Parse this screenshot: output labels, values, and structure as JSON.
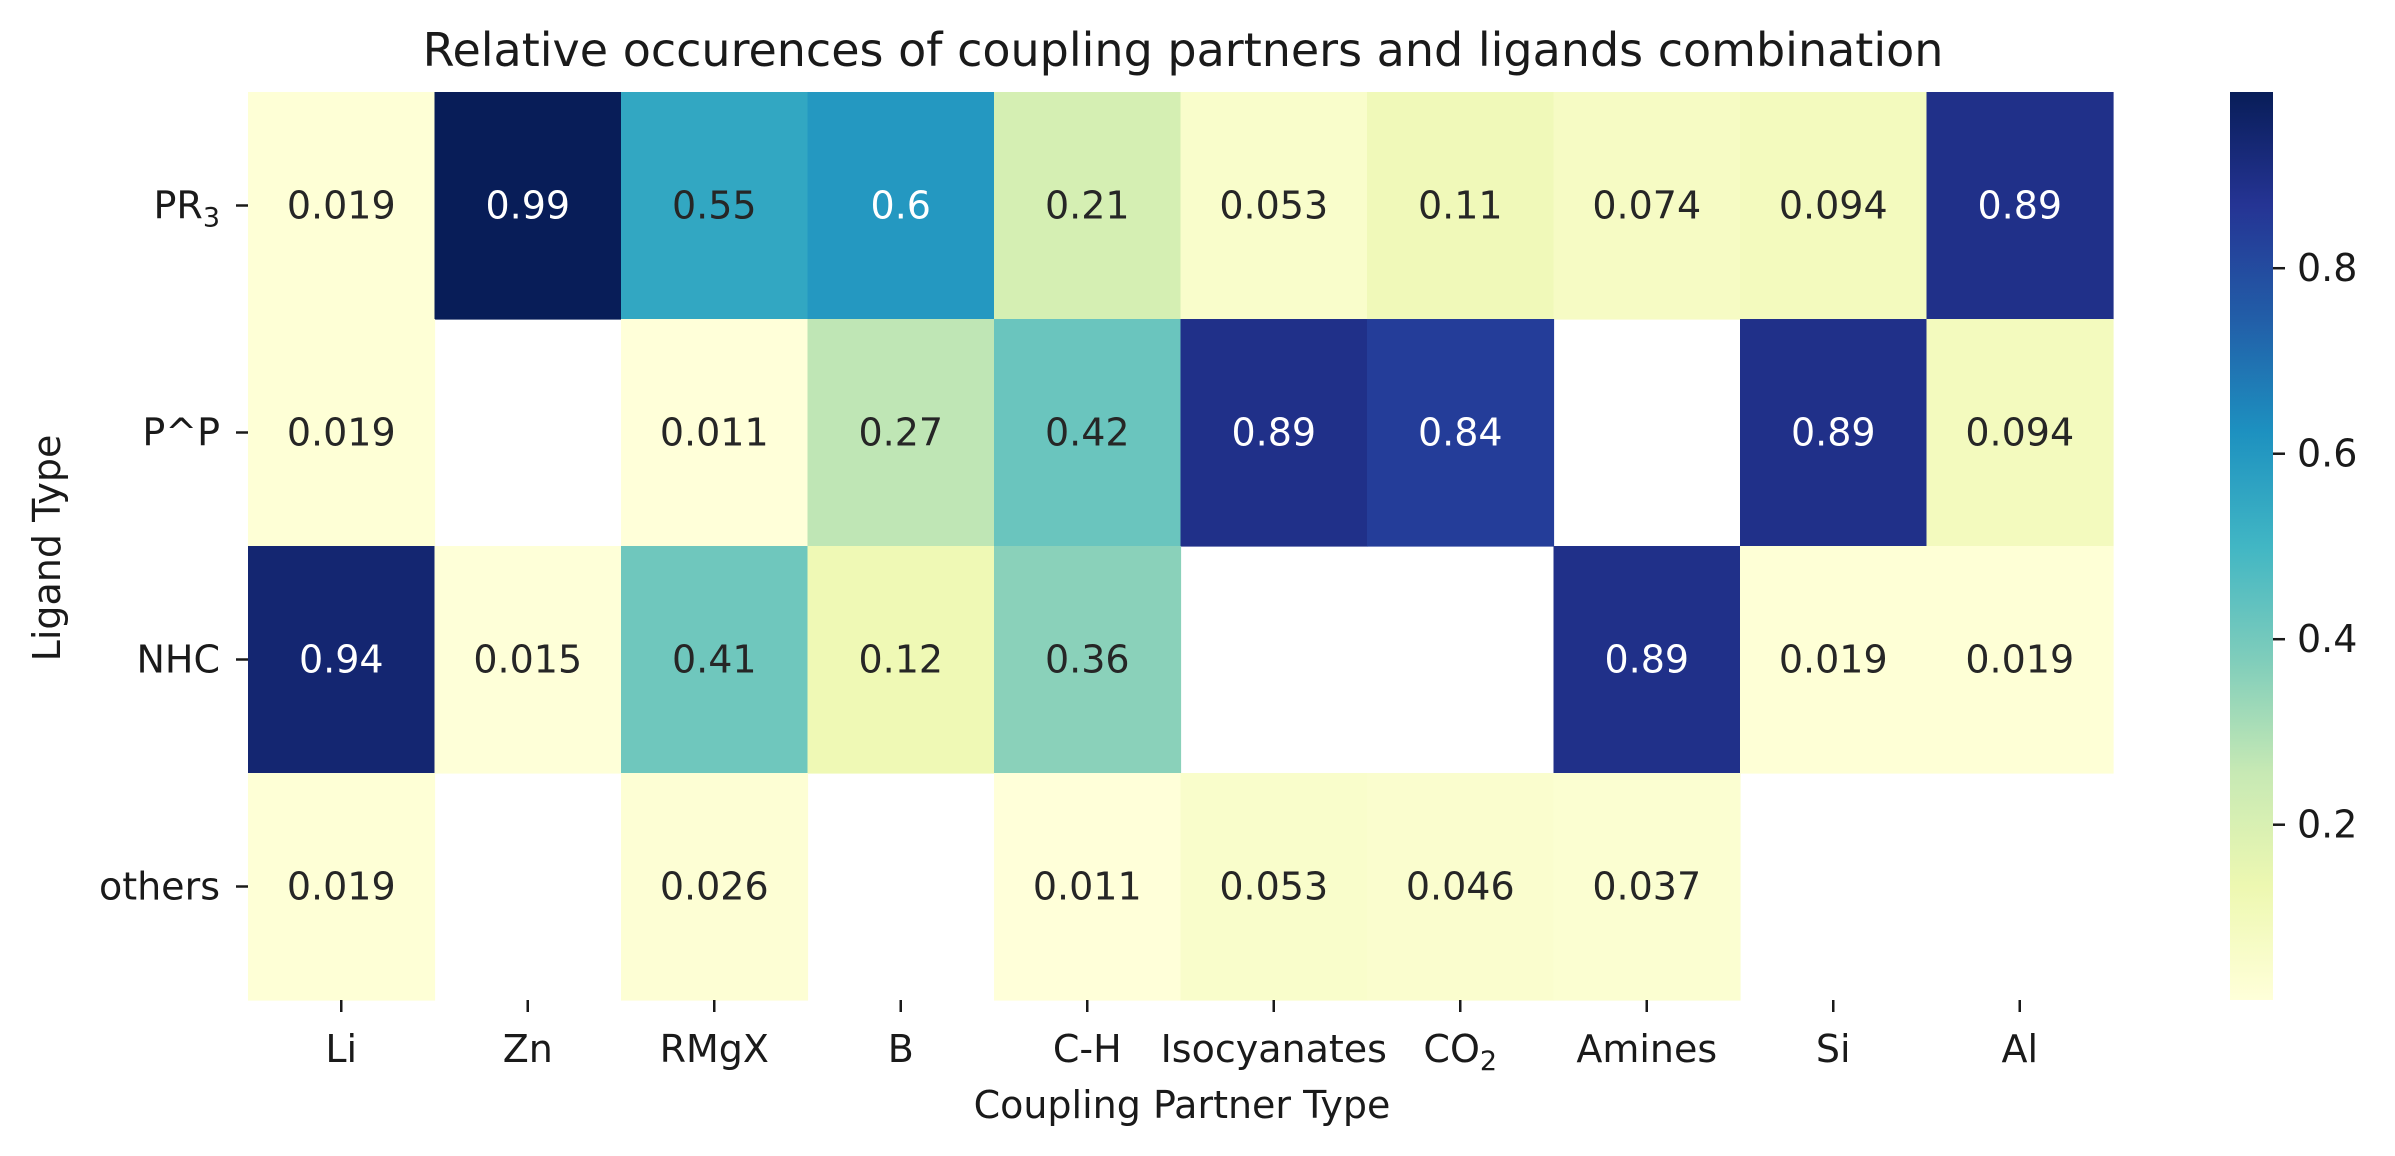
{
  "chart_data": {
    "type": "heatmap",
    "title": "Relative occurences of coupling partners and ligands combination",
    "xlabel": "Coupling Partner Type",
    "ylabel": "Ligand Type",
    "columns": [
      {
        "label": "Li"
      },
      {
        "label": "Zn"
      },
      {
        "label": "RMgX"
      },
      {
        "label": "B"
      },
      {
        "label": "C-H"
      },
      {
        "label": "Isocyanates"
      },
      {
        "label": "CO",
        "sub": "2"
      },
      {
        "label": "Amines"
      },
      {
        "label": "Si"
      },
      {
        "label": "Al"
      }
    ],
    "rows": [
      {
        "label": "PR",
        "sub": "3"
      },
      {
        "label": "P^P"
      },
      {
        "label": "NHC"
      },
      {
        "label": "others"
      }
    ],
    "values": [
      [
        "0.019",
        "0.99",
        "0.55",
        "0.6",
        "0.21",
        "0.053",
        "0.11",
        "0.074",
        "0.094",
        "0.89"
      ],
      [
        "0.019",
        null,
        "0.011",
        "0.27",
        "0.42",
        "0.89",
        "0.84",
        null,
        "0.89",
        "0.094"
      ],
      [
        "0.94",
        "0.015",
        "0.41",
        "0.12",
        "0.36",
        null,
        null,
        "0.89",
        "0.019",
        "0.019"
      ],
      [
        "0.019",
        null,
        "0.026",
        null,
        "0.011",
        "0.053",
        "0.046",
        "0.037",
        null,
        null
      ]
    ],
    "colormap": "YlGnBu",
    "colorbar": {
      "range": [
        0.011,
        0.99
      ],
      "ticks": [
        0.2,
        0.4,
        0.6,
        0.8
      ],
      "tick_labels": [
        "0.2",
        "0.4",
        "0.6",
        "0.8"
      ]
    },
    "missing_cells": "blank (white)"
  }
}
